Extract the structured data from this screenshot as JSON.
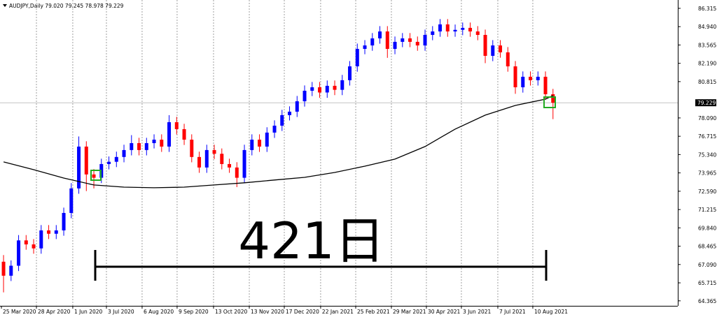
{
  "chart_data": {
    "type": "candlestick",
    "title": "AUDJPY,Daily 79.020 79.245 78.978 79.229",
    "annotation": "421日",
    "up_color": "#0000ff",
    "down_color": "#ff0000",
    "grid": true,
    "open": [
      67.3,
      66.25,
      67.0,
      68.9,
      68.6,
      68.3,
      69.65,
      69.4,
      69.65,
      70.96,
      72.8,
      75.94,
      73.85,
      73.6,
      74.63,
      74.8,
      75.16,
      75.68,
      76.2,
      75.68,
      76.2,
      76.46,
      75.94,
      77.77,
      77.25,
      76.46,
      75.16,
      74.37,
      75.68,
      75.4,
      74.63,
      74.37,
      73.6,
      75.68,
      76.46,
      75.94,
      76.99,
      77.51,
      78.3,
      78.56,
      79.34,
      80.13,
      80.39,
      80.0,
      80.5,
      80.2,
      80.92,
      81.96,
      83.27,
      83.53,
      84.06,
      84.58,
      83.27,
      83.8,
      84.06,
      83.8,
      83.53,
      84.32,
      84.58,
      85.11,
      84.58,
      84.7,
      84.85,
      84.58,
      84.32,
      82.75,
      83.53,
      83.01,
      81.96,
      80.39,
      81.18,
      80.92,
      81.18,
      79.87
    ],
    "high": [
      67.8,
      67.4,
      69.3,
      69.3,
      69.0,
      70.05,
      70.05,
      70.05,
      71.36,
      73.2,
      76.7,
      76.34,
      74.25,
      75.03,
      75.2,
      75.56,
      76.08,
      76.8,
      76.6,
      76.6,
      76.86,
      76.86,
      78.3,
      78.17,
      77.65,
      76.86,
      75.56,
      76.08,
      76.08,
      75.8,
      75.03,
      74.77,
      76.08,
      76.86,
      76.86,
      77.39,
      77.91,
      78.7,
      78.96,
      79.74,
      80.53,
      80.79,
      80.79,
      80.9,
      80.9,
      81.32,
      82.36,
      83.67,
      83.93,
      84.46,
      84.98,
      84.98,
      84.2,
      84.46,
      84.46,
      84.2,
      84.72,
      84.98,
      85.51,
      85.51,
      85.1,
      85.25,
      85.25,
      84.98,
      84.72,
      83.93,
      83.93,
      83.41,
      82.36,
      81.58,
      81.58,
      81.58,
      81.58,
      80.27
    ],
    "low": [
      65.0,
      65.85,
      66.6,
      68.2,
      67.9,
      67.9,
      69.0,
      69.0,
      69.25,
      70.56,
      72.4,
      72.6,
      72.8,
      73.2,
      74.23,
      74.4,
      74.76,
      75.28,
      75.28,
      75.28,
      75.8,
      75.54,
      75.54,
      76.85,
      76.06,
      74.76,
      73.97,
      73.97,
      75.0,
      74.23,
      73.97,
      72.9,
      73.2,
      75.28,
      75.54,
      75.54,
      76.59,
      77.11,
      77.9,
      78.16,
      78.94,
      79.73,
      79.6,
      79.6,
      79.8,
      79.8,
      80.52,
      81.56,
      82.87,
      83.13,
      83.66,
      82.6,
      82.87,
      83.4,
      83.4,
      83.13,
      83.13,
      83.92,
      84.18,
      84.18,
      84.18,
      84.3,
      84.18,
      83.92,
      82.2,
      82.35,
      82.61,
      81.56,
      79.9,
      79.99,
      80.52,
      80.52,
      79.47,
      78.0
    ],
    "close": [
      66.25,
      67.0,
      68.9,
      68.6,
      68.3,
      69.65,
      69.4,
      69.65,
      70.96,
      72.8,
      75.94,
      73.85,
      73.6,
      74.63,
      74.8,
      75.16,
      75.68,
      76.2,
      75.68,
      76.2,
      76.46,
      75.94,
      77.77,
      77.25,
      76.46,
      75.16,
      74.37,
      75.68,
      75.4,
      74.63,
      74.37,
      73.6,
      75.68,
      76.46,
      75.94,
      76.99,
      77.51,
      78.3,
      78.56,
      79.34,
      80.13,
      80.39,
      80.0,
      80.5,
      80.2,
      80.92,
      81.96,
      83.27,
      83.53,
      84.06,
      84.58,
      83.27,
      83.8,
      84.06,
      83.8,
      83.53,
      84.32,
      84.58,
      85.11,
      84.58,
      84.7,
      84.85,
      84.58,
      84.32,
      82.75,
      83.53,
      83.01,
      81.96,
      80.39,
      81.18,
      80.92,
      81.18,
      79.87,
      79.229
    ],
    "moving_average": {
      "color": "#000000",
      "x": [
        0,
        4,
        8,
        12,
        16,
        20,
        24,
        28,
        32,
        36,
        40,
        44,
        48,
        52,
        56,
        60,
        64,
        68,
        72,
        73
      ],
      "values": [
        74.79,
        74.21,
        73.58,
        73.06,
        72.9,
        72.85,
        72.9,
        73.06,
        73.22,
        73.43,
        73.63,
        74.0,
        74.47,
        75.0,
        75.94,
        77.25,
        78.3,
        79.03,
        79.5,
        79.77
      ]
    },
    "current_price": 79.229,
    "xlim": [
      -0.47,
      89.58
    ],
    "xticks": [
      {
        "value": -0.28,
        "label": "25 Mar 2020"
      },
      {
        "value": 4.37,
        "label": "28 Apr 2020"
      },
      {
        "value": 9.2,
        "label": "1 Jun 2020"
      },
      {
        "value": 13.67,
        "label": "3 Jul 2020"
      },
      {
        "value": 18.41,
        "label": "6 Aug 2020"
      },
      {
        "value": 23.06,
        "label": "9 Sep 2020"
      },
      {
        "value": 27.9,
        "label": "13 Oct 2020"
      },
      {
        "value": 32.65,
        "label": "13 Nov 2020"
      },
      {
        "value": 37.3,
        "label": "17 Dec 2020"
      },
      {
        "value": 42.13,
        "label": "22 Jan 2021"
      },
      {
        "value": 46.79,
        "label": "25 Feb 2021"
      },
      {
        "value": 51.53,
        "label": "29 Mar 2021"
      },
      {
        "value": 56.18,
        "label": "30 Apr 2021"
      },
      {
        "value": 60.83,
        "label": "3 Jun 2021"
      },
      {
        "value": 65.67,
        "label": "7 Jul 2021"
      },
      {
        "value": 70.32,
        "label": "10 Aug 2021"
      }
    ],
    "ylim": [
      63.99,
      86.94
    ],
    "yticks": [
      86.315,
      {
        "value": 84.94,
        "label": "84.940"
      },
      83.565,
      {
        "value": 82.19,
        "label": "82.190"
      },
      80.815,
      {
        "value": 78.09,
        "label": "78.090"
      },
      76.715,
      {
        "value": 75.34,
        "label": "75.340"
      },
      73.965,
      {
        "value": 72.59,
        "label": "72.590"
      },
      71.215,
      {
        "value": 69.84,
        "label": "69.840"
      },
      68.465,
      {
        "value": 67.09,
        "label": "67.090"
      },
      65.715,
      64.365
    ]
  }
}
